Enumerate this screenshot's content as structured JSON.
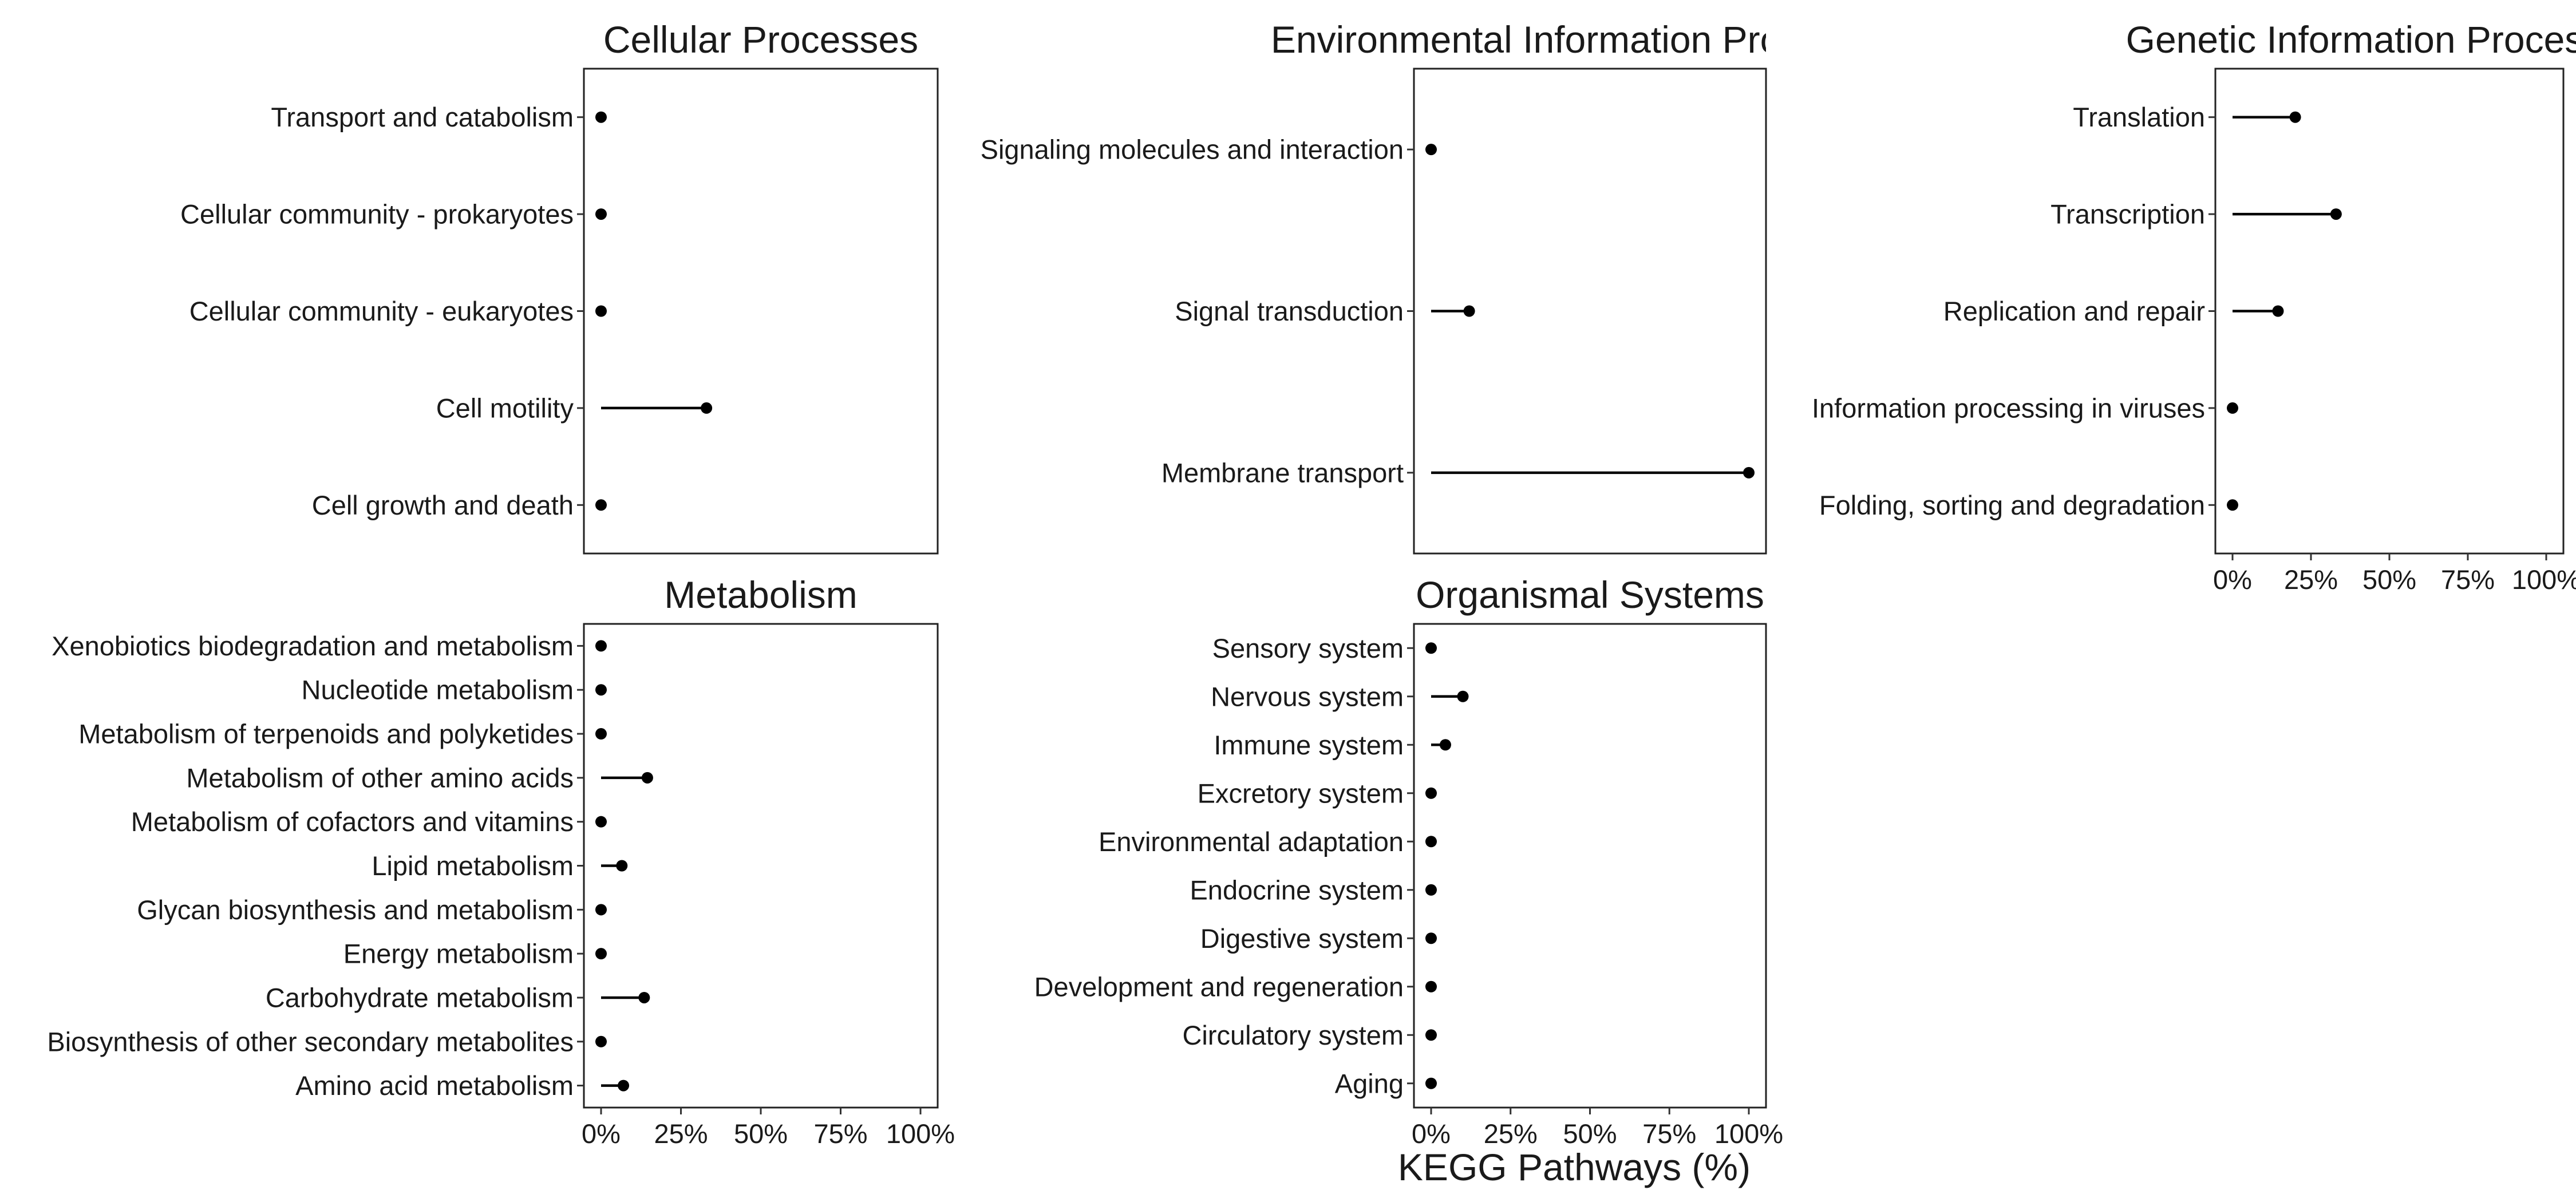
{
  "chart_data": {
    "type": "lollipop",
    "x_axis_title": "KEGG Pathways (%)",
    "x_ticks": [
      {
        "value": 0,
        "label": "0%"
      },
      {
        "value": 25,
        "label": "25%"
      },
      {
        "value": 50,
        "label": "50%"
      },
      {
        "value": 75,
        "label": "75%"
      },
      {
        "value": 100,
        "label": "100%"
      }
    ],
    "xlim": [
      0,
      100
    ],
    "grid": false,
    "colors": {
      "marker": "#000000",
      "frame": "#222222",
      "text": "#1a1a1a"
    },
    "panels": [
      {
        "title": "Cellular Processes",
        "show_x_axis": false,
        "categories": [
          "Transport and catabolism",
          "Cellular community - prokaryotes",
          "Cellular community - eukaryotes",
          "Cell motility",
          "Cell growth and death"
        ],
        "values": [
          0,
          0,
          0,
          33,
          0
        ]
      },
      {
        "title": "Environmental Information Processing",
        "show_x_axis": false,
        "categories": [
          "Signaling molecules and interaction",
          "Signal transduction",
          "Membrane transport"
        ],
        "values": [
          0,
          12,
          100
        ]
      },
      {
        "title": "Genetic Information Processing",
        "show_x_axis": true,
        "categories": [
          "Translation",
          "Transcription",
          "Replication and repair",
          "Information processing in viruses",
          "Folding, sorting and degradation"
        ],
        "values": [
          20,
          33,
          14.5,
          0,
          0
        ]
      },
      {
        "title": "Metabolism",
        "show_x_axis": true,
        "categories": [
          "Xenobiotics biodegradation and metabolism",
          "Nucleotide metabolism",
          "Metabolism of terpenoids and polyketides",
          "Metabolism of other amino acids",
          "Metabolism of cofactors and vitamins",
          "Lipid metabolism",
          "Glycan biosynthesis and metabolism",
          "Energy metabolism",
          "Carbohydrate metabolism",
          "Biosynthesis of other secondary metabolites",
          "Amino acid metabolism"
        ],
        "values": [
          0,
          0,
          0,
          14.5,
          0,
          6.5,
          0,
          0,
          13.5,
          0,
          7
        ]
      },
      {
        "title": "Organismal Systems",
        "show_x_axis": true,
        "categories": [
          "Sensory system",
          "Nervous system",
          "Immune system",
          "Excretory system",
          "Environmental adaptation",
          "Endocrine system",
          "Digestive system",
          "Development and regeneration",
          "Circulatory system",
          "Aging"
        ],
        "values": [
          0,
          10,
          4.5,
          0,
          0,
          0,
          0,
          0,
          0,
          0
        ]
      }
    ]
  }
}
